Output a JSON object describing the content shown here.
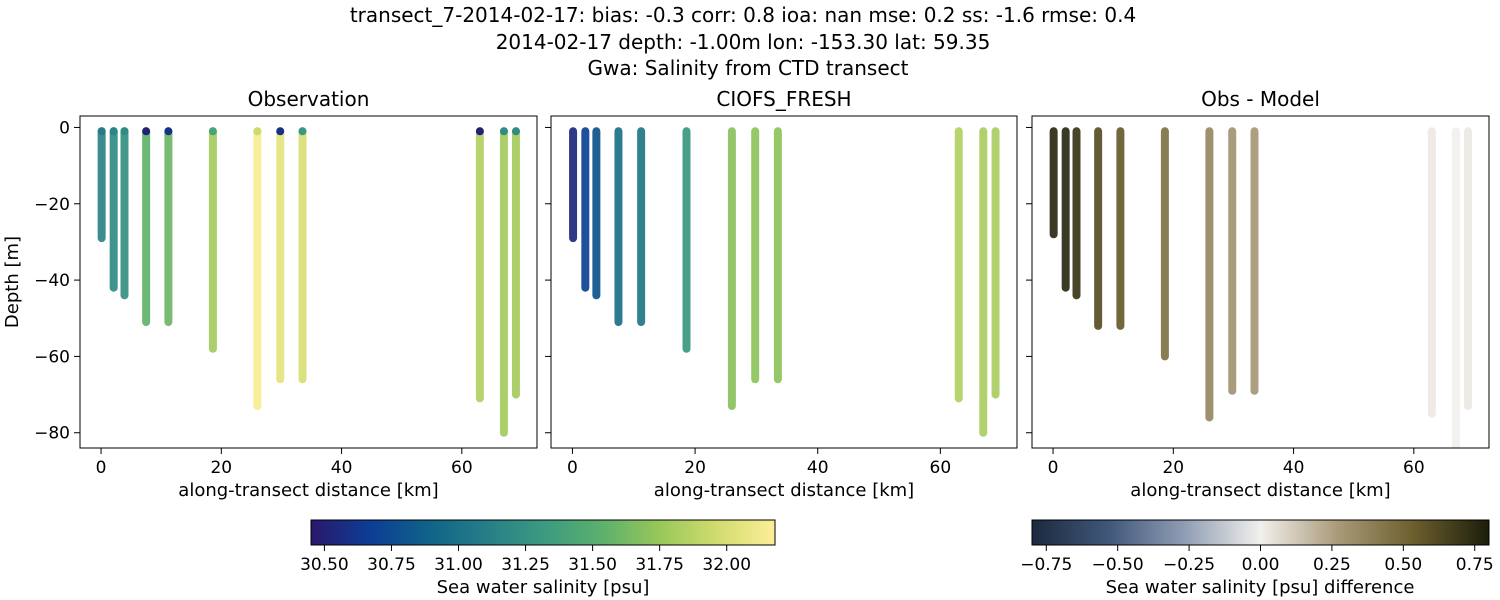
{
  "figure": {
    "title_lines": [
      "transect_7-2014-02-17: bias: -0.3  corr: 0.8  ioa: nan  mse: 0.2  ss: -1.6  rmse: 0.4",
      "2014-02-17 depth: -1.00m lon: -153.30 lat: 59.35",
      "Gwa: Salinity from CTD transect"
    ]
  },
  "chart_data": [
    {
      "type": "scatter",
      "title": "Observation",
      "xlabel": "along-transect distance [km]",
      "ylabel": "Depth [m]",
      "xlim": [
        -3.5,
        72.5
      ],
      "ylim": [
        -84,
        3
      ],
      "xticks": [
        0,
        20,
        40,
        60
      ],
      "xtick_labels": [
        "0",
        "20",
        "40",
        "60"
      ],
      "yticks": [
        0,
        -20,
        -40,
        -60,
        -80
      ],
      "ytick_labels": [
        "0",
        "−20",
        "−40",
        "−60",
        "−80"
      ],
      "colormap": "haline",
      "color_range": [
        30.45,
        32.18
      ],
      "casts": [
        {
          "x": 0.1,
          "depth_max": 29,
          "salinity": 31.15,
          "surface_salinity": 31.1
        },
        {
          "x": 2.1,
          "depth_max": 42,
          "salinity": 31.2,
          "surface_salinity": 31.15
        },
        {
          "x": 3.9,
          "depth_max": 44,
          "salinity": 31.25,
          "surface_salinity": 31.2
        },
        {
          "x": 7.5,
          "depth_max": 51,
          "salinity": 31.55,
          "surface_salinity": 30.5
        },
        {
          "x": 11.2,
          "depth_max": 51,
          "salinity": 31.6,
          "surface_salinity": 30.6
        },
        {
          "x": 18.6,
          "depth_max": 58,
          "salinity": 31.8,
          "surface_salinity": 31.4
        },
        {
          "x": 26.0,
          "depth_max": 73,
          "salinity": 32.15,
          "surface_salinity": 31.95
        },
        {
          "x": 29.8,
          "depth_max": 66,
          "salinity": 32.05,
          "surface_salinity": 30.6
        },
        {
          "x": 33.5,
          "depth_max": 66,
          "salinity": 32.0,
          "surface_salinity": 31.3
        },
        {
          "x": 63.0,
          "depth_max": 71,
          "salinity": 31.85,
          "surface_salinity": 30.5
        },
        {
          "x": 67.0,
          "depth_max": 80,
          "salinity": 31.8,
          "surface_salinity": 31.2
        },
        {
          "x": 69.0,
          "depth_max": 70,
          "salinity": 31.8,
          "surface_salinity": 31.2
        }
      ]
    },
    {
      "type": "scatter",
      "title": "CIOFS_FRESH",
      "xlabel": "along-transect distance [km]",
      "ylabel": "",
      "xlim": [
        -3.5,
        72.5
      ],
      "ylim": [
        -84,
        3
      ],
      "xticks": [
        0,
        20,
        40,
        60
      ],
      "xtick_labels": [
        "0",
        "20",
        "40",
        "60"
      ],
      "yticks": [
        0,
        -20,
        -40,
        -60,
        -80
      ],
      "ytick_labels": [],
      "colormap": "haline",
      "color_range": [
        30.45,
        32.18
      ],
      "casts": [
        {
          "x": 0.1,
          "depth_max": 29,
          "salinity": 30.55
        },
        {
          "x": 2.1,
          "depth_max": 42,
          "salinity": 30.7
        },
        {
          "x": 3.9,
          "depth_max": 44,
          "salinity": 30.8
        },
        {
          "x": 7.5,
          "depth_max": 51,
          "salinity": 31.0
        },
        {
          "x": 11.2,
          "depth_max": 51,
          "salinity": 31.05
        },
        {
          "x": 18.6,
          "depth_max": 58,
          "salinity": 31.3
        },
        {
          "x": 26.0,
          "depth_max": 73,
          "salinity": 31.7
        },
        {
          "x": 29.8,
          "depth_max": 66,
          "salinity": 31.72
        },
        {
          "x": 33.5,
          "depth_max": 66,
          "salinity": 31.72
        },
        {
          "x": 63.0,
          "depth_max": 71,
          "salinity": 31.85
        },
        {
          "x": 67.0,
          "depth_max": 80,
          "salinity": 31.82
        },
        {
          "x": 69.0,
          "depth_max": 70,
          "salinity": 31.82
        }
      ]
    },
    {
      "type": "scatter",
      "title": "Obs - Model",
      "xlabel": "along-transect distance [km]",
      "ylabel": "",
      "xlim": [
        -3.5,
        72.5
      ],
      "ylim": [
        -84,
        3
      ],
      "xticks": [
        0,
        20,
        40,
        60
      ],
      "xtick_labels": [
        "0",
        "20",
        "40",
        "60"
      ],
      "yticks": [
        0,
        -20,
        -40,
        -60,
        -80
      ],
      "ytick_labels": [],
      "colormap": "diff",
      "color_range": [
        -0.8,
        0.8
      ],
      "casts": [
        {
          "x": 0.1,
          "depth_max": 28,
          "difference": 0.75
        },
        {
          "x": 2.1,
          "depth_max": 42,
          "difference": 0.75
        },
        {
          "x": 3.9,
          "depth_max": 44,
          "difference": 0.7
        },
        {
          "x": 7.5,
          "depth_max": 52,
          "difference": 0.6
        },
        {
          "x": 11.2,
          "depth_max": 52,
          "difference": 0.55
        },
        {
          "x": 18.6,
          "depth_max": 60,
          "difference": 0.45
        },
        {
          "x": 26.0,
          "depth_max": 76,
          "difference": 0.35
        },
        {
          "x": 29.8,
          "depth_max": 69,
          "difference": 0.3
        },
        {
          "x": 33.5,
          "depth_max": 69,
          "difference": 0.28
        },
        {
          "x": 63.0,
          "depth_max": 75,
          "difference": 0.02
        },
        {
          "x": 67.0,
          "depth_max": 85,
          "difference": 0.0
        },
        {
          "x": 69.0,
          "depth_max": 73,
          "difference": 0.02
        }
      ]
    }
  ],
  "colorbars": [
    {
      "label": "Sea water salinity [psu]",
      "colormap": "haline",
      "range": [
        30.45,
        32.18
      ],
      "ticks": [
        30.5,
        30.75,
        31.0,
        31.25,
        31.5,
        31.75,
        32.0
      ],
      "tick_labels": [
        "30.50",
        "30.75",
        "31.00",
        "31.25",
        "31.50",
        "31.75",
        "32.00"
      ]
    },
    {
      "label": "Sea water salinity [psu] difference",
      "colormap": "diff",
      "range": [
        -0.8,
        0.8
      ],
      "ticks": [
        -0.75,
        -0.5,
        -0.25,
        0.0,
        0.25,
        0.5,
        0.75
      ],
      "tick_labels": [
        "−0.75",
        "−0.50",
        "−0.25",
        "0.00",
        "0.25",
        "0.50",
        "0.75"
      ]
    }
  ],
  "colors": {
    "haline": [
      "#2a186c",
      "#0d3c94",
      "#0f6289",
      "#267d87",
      "#3b9a81",
      "#5bb06c",
      "#97c75a",
      "#d1dc6e",
      "#fdee99"
    ],
    "diff": [
      "#1c2a3e",
      "#40577a",
      "#8f9db3",
      "#f2f0ed",
      "#aa9b7a",
      "#6d5f2e",
      "#1c1e0b"
    ]
  }
}
